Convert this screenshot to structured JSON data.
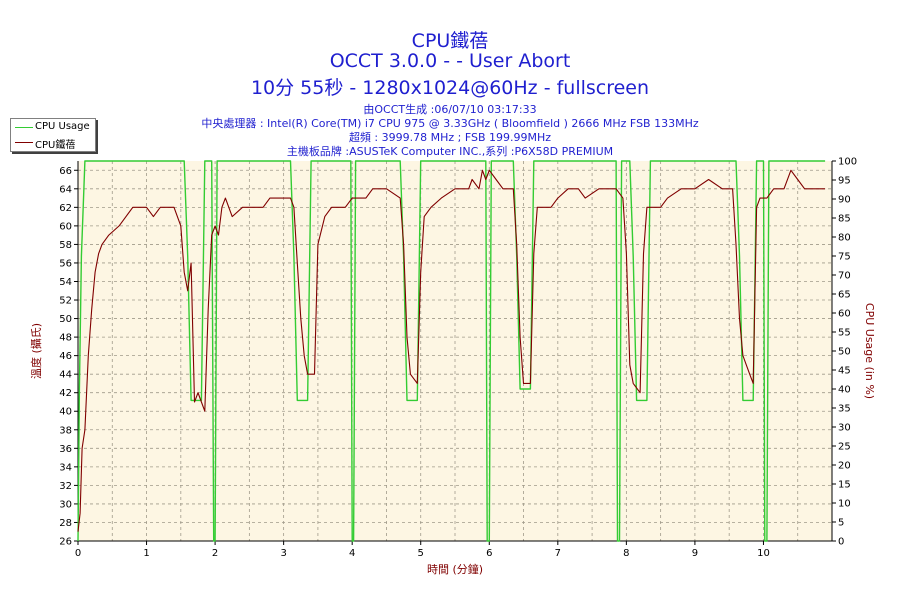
{
  "header": {
    "title1": "CPU鐵蓓",
    "title2": "OCCT 3.0.0 -  - User Abort",
    "title3": "10分 55秒 - 1280x1024@60Hz - fullscreen",
    "info1": "由OCCT生成 :06/07/10 03:17:33",
    "info2": "中央處理器 : Intel(R) Core(TM) i7 CPU 975 @ 3.33GHz ( Bloomfield ) 2666 MHz FSB 133MHz",
    "info3": "超頻 : 3999.78 MHz ; FSB 199.99MHz",
    "info4": "主機板品牌 :ASUSTeK Computer INC.,系列 :P6X58D PREMIUM"
  },
  "legend": [
    {
      "label": "CPU Usage",
      "color": "#33cc33"
    },
    {
      "label": "CPU鐵蓓",
      "color": "#800000"
    }
  ],
  "chart_data": {
    "type": "line",
    "xlabel": "時間 (分鐘)",
    "ylabel_left": "溫度 (攝氏)",
    "ylabel_right": "CPU Usage (in %)",
    "xlim": [
      0,
      11
    ],
    "ylim_left": [
      26,
      67
    ],
    "ylim_right": [
      0,
      100
    ],
    "x_ticks": [
      "0",
      "1",
      "2",
      "3",
      "4",
      "5",
      "6",
      "7",
      "8",
      "9",
      "10"
    ],
    "y_left_ticks": [
      "26",
      "28",
      "30",
      "32",
      "34",
      "36",
      "38",
      "40",
      "42",
      "44",
      "46",
      "48",
      "50",
      "52",
      "54",
      "56",
      "58",
      "60",
      "62",
      "64",
      "66"
    ],
    "y_right_ticks": [
      "0",
      "5",
      "10",
      "15",
      "20",
      "25",
      "30",
      "35",
      "40",
      "45",
      "50",
      "55",
      "60",
      "65",
      "70",
      "75",
      "80",
      "85",
      "90",
      "95",
      "100"
    ],
    "grid": true,
    "series": [
      {
        "name": "CPU Usage",
        "axis": "right",
        "color": "#33cc33",
        "points": [
          [
            0,
            0
          ],
          [
            0.02,
            40
          ],
          [
            0.05,
            75
          ],
          [
            0.1,
            100
          ],
          [
            1.55,
            100
          ],
          [
            1.6,
            75
          ],
          [
            1.65,
            37
          ],
          [
            1.8,
            37
          ],
          [
            1.85,
            100
          ],
          [
            1.95,
            100
          ],
          [
            1.98,
            0
          ],
          [
            2.0,
            0
          ],
          [
            2.03,
            100
          ],
          [
            3.1,
            100
          ],
          [
            3.15,
            75
          ],
          [
            3.2,
            37
          ],
          [
            3.35,
            37
          ],
          [
            3.4,
            100
          ],
          [
            3.98,
            100
          ],
          [
            4.0,
            0
          ],
          [
            4.02,
            0
          ],
          [
            4.05,
            100
          ],
          [
            4.7,
            100
          ],
          [
            4.75,
            75
          ],
          [
            4.8,
            37
          ],
          [
            4.95,
            37
          ],
          [
            5.0,
            100
          ],
          [
            5.95,
            100
          ],
          [
            5.97,
            0
          ],
          [
            6.0,
            0
          ],
          [
            6.03,
            100
          ],
          [
            6.35,
            100
          ],
          [
            6.4,
            75
          ],
          [
            6.45,
            40
          ],
          [
            6.6,
            40
          ],
          [
            6.65,
            100
          ],
          [
            7.85,
            100
          ],
          [
            7.87,
            0
          ],
          [
            7.9,
            0
          ],
          [
            7.93,
            100
          ],
          [
            8.05,
            100
          ],
          [
            8.1,
            75
          ],
          [
            8.15,
            37
          ],
          [
            8.3,
            37
          ],
          [
            8.35,
            100
          ],
          [
            9.6,
            100
          ],
          [
            9.65,
            75
          ],
          [
            9.7,
            37
          ],
          [
            9.85,
            37
          ],
          [
            9.9,
            100
          ],
          [
            10.0,
            100
          ],
          [
            10.02,
            0
          ],
          [
            10.05,
            0
          ],
          [
            10.08,
            100
          ],
          [
            10.9,
            100
          ]
        ]
      },
      {
        "name": "CPU鐵蓓",
        "axis": "left",
        "color": "#800000",
        "points": [
          [
            0,
            27
          ],
          [
            0.03,
            29
          ],
          [
            0.06,
            36
          ],
          [
            0.1,
            38
          ],
          [
            0.15,
            46
          ],
          [
            0.2,
            51
          ],
          [
            0.25,
            55
          ],
          [
            0.3,
            57
          ],
          [
            0.35,
            58
          ],
          [
            0.45,
            59
          ],
          [
            0.6,
            60
          ],
          [
            0.7,
            61
          ],
          [
            0.8,
            62
          ],
          [
            1.0,
            62
          ],
          [
            1.1,
            61
          ],
          [
            1.2,
            62
          ],
          [
            1.4,
            62
          ],
          [
            1.5,
            60
          ],
          [
            1.55,
            55
          ],
          [
            1.6,
            53
          ],
          [
            1.65,
            56
          ],
          [
            1.7,
            41
          ],
          [
            1.75,
            42
          ],
          [
            1.8,
            41
          ],
          [
            1.85,
            40
          ],
          [
            1.9,
            51
          ],
          [
            1.95,
            59
          ],
          [
            2.0,
            60
          ],
          [
            2.05,
            59
          ],
          [
            2.1,
            62
          ],
          [
            2.15,
            63
          ],
          [
            2.2,
            62
          ],
          [
            2.25,
            61
          ],
          [
            2.4,
            62
          ],
          [
            2.7,
            62
          ],
          [
            2.8,
            63
          ],
          [
            3.1,
            63
          ],
          [
            3.15,
            62
          ],
          [
            3.2,
            56
          ],
          [
            3.25,
            50
          ],
          [
            3.3,
            46
          ],
          [
            3.35,
            44
          ],
          [
            3.45,
            44
          ],
          [
            3.5,
            58
          ],
          [
            3.6,
            61
          ],
          [
            3.7,
            62
          ],
          [
            3.9,
            62
          ],
          [
            4.0,
            63
          ],
          [
            4.2,
            63
          ],
          [
            4.3,
            64
          ],
          [
            4.5,
            64
          ],
          [
            4.7,
            63
          ],
          [
            4.75,
            58
          ],
          [
            4.8,
            48
          ],
          [
            4.85,
            44
          ],
          [
            4.95,
            43
          ],
          [
            5.0,
            55
          ],
          [
            5.05,
            61
          ],
          [
            5.15,
            62
          ],
          [
            5.3,
            63
          ],
          [
            5.5,
            64
          ],
          [
            5.7,
            64
          ],
          [
            5.75,
            65
          ],
          [
            5.85,
            64
          ],
          [
            5.9,
            66
          ],
          [
            5.95,
            65
          ],
          [
            6.0,
            66
          ],
          [
            6.1,
            65
          ],
          [
            6.2,
            64
          ],
          [
            6.35,
            64
          ],
          [
            6.4,
            58
          ],
          [
            6.45,
            48
          ],
          [
            6.5,
            43
          ],
          [
            6.6,
            43
          ],
          [
            6.65,
            57
          ],
          [
            6.7,
            62
          ],
          [
            6.9,
            62
          ],
          [
            7.0,
            63
          ],
          [
            7.15,
            64
          ],
          [
            7.3,
            64
          ],
          [
            7.4,
            63
          ],
          [
            7.6,
            64
          ],
          [
            7.85,
            64
          ],
          [
            7.95,
            63
          ],
          [
            8.0,
            57
          ],
          [
            8.05,
            45
          ],
          [
            8.1,
            43
          ],
          [
            8.2,
            42
          ],
          [
            8.25,
            57
          ],
          [
            8.3,
            62
          ],
          [
            8.5,
            62
          ],
          [
            8.6,
            63
          ],
          [
            8.8,
            64
          ],
          [
            9.0,
            64
          ],
          [
            9.2,
            65
          ],
          [
            9.4,
            64
          ],
          [
            9.55,
            64
          ],
          [
            9.6,
            58
          ],
          [
            9.65,
            50
          ],
          [
            9.7,
            46
          ],
          [
            9.75,
            45
          ],
          [
            9.8,
            44
          ],
          [
            9.85,
            43
          ],
          [
            9.9,
            62
          ],
          [
            9.95,
            63
          ],
          [
            10.05,
            63
          ],
          [
            10.15,
            64
          ],
          [
            10.3,
            64
          ],
          [
            10.4,
            66
          ],
          [
            10.5,
            65
          ],
          [
            10.6,
            64
          ],
          [
            10.9,
            64
          ]
        ]
      }
    ]
  }
}
